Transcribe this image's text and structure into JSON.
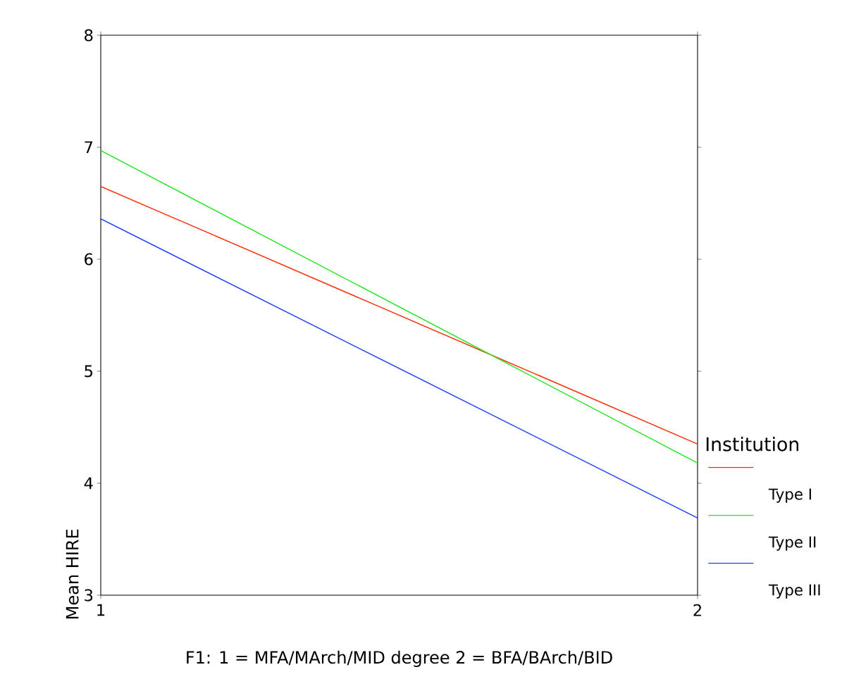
{
  "chart_data": {
    "type": "line",
    "xlabel": "F1:  1 = MFA/MArch/MID degree  2 = BFA/BArch/BID",
    "ylabel": "Mean HIRE",
    "legend_title": "Institution",
    "x": [
      1,
      2
    ],
    "xlim": [
      1,
      2
    ],
    "xticks": [
      1,
      2
    ],
    "ylim": [
      3,
      8
    ],
    "yticks": [
      3,
      4,
      5,
      6,
      7,
      8
    ],
    "series": [
      {
        "name": "Type I",
        "color": "#ff2a00",
        "values": [
          6.65,
          4.35
        ]
      },
      {
        "name": "Type II",
        "color": "#22e622",
        "values": [
          6.97,
          4.18
        ]
      },
      {
        "name": "Type III",
        "color": "#1a3cff",
        "values": [
          6.36,
          3.69
        ]
      }
    ],
    "grid": false,
    "legend": "right",
    "marker": "none",
    "line_style": "solid"
  }
}
